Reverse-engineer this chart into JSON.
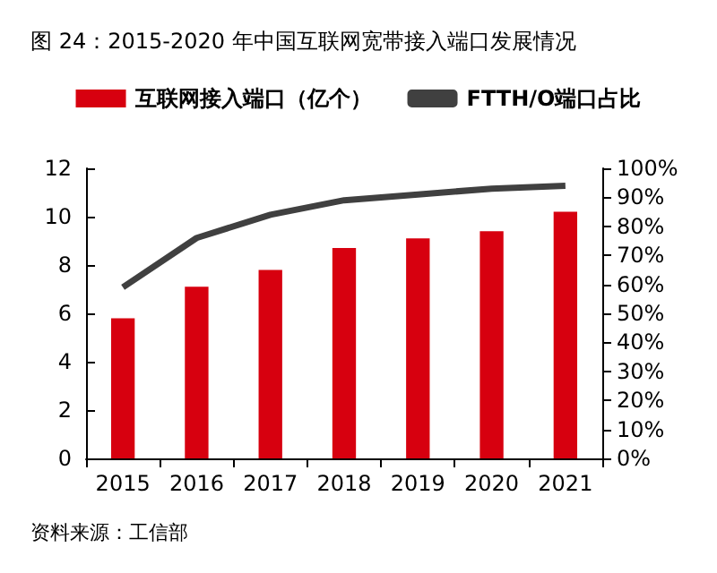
{
  "chart_data": {
    "type": "bar",
    "title": "图 24：2015-2020 年中国互联网宽带接入端口发展情况",
    "categories": [
      "2015",
      "2016",
      "2017",
      "2018",
      "2019",
      "2020",
      "2021"
    ],
    "series": [
      {
        "name": "互联网接入端口（亿个）",
        "color": "#d7000f",
        "values": [
          5.8,
          7.1,
          7.8,
          8.7,
          9.1,
          9.4,
          10.2
        ]
      },
      {
        "name": "FTTH/O端口占比",
        "type": "line",
        "axis": "y2",
        "color": "#404040",
        "values": [
          59,
          76,
          84,
          89,
          91,
          93,
          94
        ]
      }
    ],
    "ylim": [
      0,
      12
    ],
    "yticks": [
      0,
      2,
      4,
      6,
      8,
      10,
      12
    ],
    "y2lim": [
      0,
      100
    ],
    "y2ticks": [
      {
        "value": 0,
        "label": "0%"
      },
      {
        "value": 10,
        "label": "10%"
      },
      {
        "value": 20,
        "label": "20%"
      },
      {
        "value": 30,
        "label": "30%"
      },
      {
        "value": 40,
        "label": "40%"
      },
      {
        "value": 50,
        "label": "50%"
      },
      {
        "value": 60,
        "label": "60%"
      },
      {
        "value": 70,
        "label": "70%"
      },
      {
        "value": 80,
        "label": "80%"
      },
      {
        "value": 90,
        "label": "90%"
      },
      {
        "value": 100,
        "label": "100%"
      }
    ],
    "legend": "top",
    "grid": false,
    "marker": "none",
    "annotations": [
      "资料来源：工信部"
    ]
  }
}
